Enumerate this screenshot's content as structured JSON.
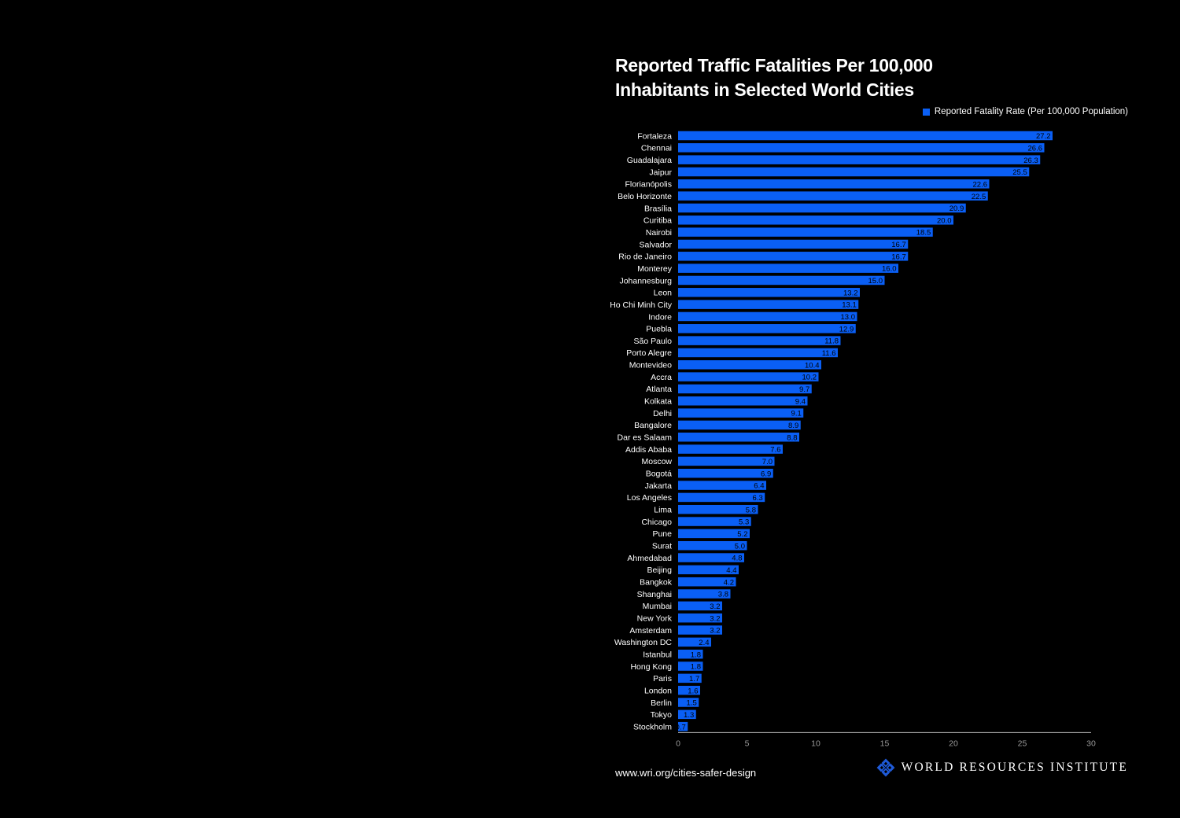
{
  "chart_data": {
    "type": "bar",
    "orientation": "horizontal",
    "title": [
      "Reported Traffic Fatalities Per 100,000",
      "Inhabitants in Selected World Cities"
    ],
    "xlim": [
      0,
      30
    ],
    "xticks": [
      0,
      5,
      10,
      15,
      20,
      25,
      30
    ],
    "grid": false,
    "legend_position": "top-right",
    "series": [
      {
        "name": "Reported Fatality Rate (Per 100,000 Population)",
        "color": "#0a5ff5",
        "labels": [
          "27.2",
          "26.6",
          "26.3",
          "25.5",
          "22.6",
          "22.5",
          "20.9",
          "20.0",
          "18.5",
          "16.7",
          "16.7",
          "16.0",
          "15.0",
          "13.2",
          "13.1",
          "13.0",
          "12.9",
          "11.8",
          "11.6",
          "10.4",
          "10.2",
          "9.7",
          "9.4",
          "9.1",
          "8.9",
          "8.8",
          "7.6",
          "7.0",
          "6.9",
          "6.4",
          "6.3",
          "5.8",
          "5.3",
          "5.2",
          "5.0",
          "4.8",
          "4.4",
          "4.2",
          "3.8",
          "3.2",
          "3.2",
          "3.2",
          "2.4",
          "1.8",
          "1.8",
          "1.7",
          "1.6",
          "1.5",
          "1.3",
          "0.7"
        ],
        "values": [
          27.2,
          26.6,
          26.3,
          25.5,
          22.6,
          22.5,
          20.9,
          20.0,
          18.5,
          16.7,
          16.7,
          16.0,
          15.0,
          13.2,
          13.1,
          13.0,
          12.9,
          11.8,
          11.6,
          10.4,
          10.2,
          9.7,
          9.4,
          9.1,
          8.9,
          8.8,
          7.6,
          7.0,
          6.9,
          6.4,
          6.3,
          5.8,
          5.3,
          5.2,
          5.0,
          4.8,
          4.4,
          4.2,
          3.8,
          3.2,
          3.2,
          3.2,
          2.4,
          1.8,
          1.8,
          1.7,
          1.6,
          1.5,
          1.3,
          0.7
        ]
      }
    ],
    "categories": [
      "Fortaleza",
      "Chennai",
      "Guadalajara",
      "Jaipur",
      "Florianópolis",
      "Belo Horizonte",
      "Brasília",
      "Curitiba",
      "Nairobi",
      "Salvador",
      "Rio de Janeiro",
      "Monterey",
      "Johannesburg",
      "Leon",
      "Ho Chi Minh City",
      "Indore",
      "Puebla",
      "São Paulo",
      "Porto Alegre",
      "Montevideo",
      "Accra",
      "Atlanta",
      "Kolkata",
      "Delhi",
      "Bangalore",
      "Dar es Salaam",
      "Addis Ababa",
      "Moscow",
      "Bogotá",
      "Jakarta",
      "Los Angeles",
      "Lima",
      "Chicago",
      "Pune",
      "Surat",
      "Ahmedabad",
      "Beijing",
      "Bangkok",
      "Shanghai",
      "Mumbai",
      "New York",
      "Amsterdam",
      "Washington DC",
      "Istanbul",
      "Hong Kong",
      "Paris",
      "London",
      "Berlin",
      "Tokyo",
      "Stockholm"
    ]
  },
  "footer": {
    "url": "www.wri.org/cities-safer-design",
    "brand_name": "WORLD RESOURCES INSTITUTE",
    "brand_icon": "wri-knot-logo-icon"
  },
  "colors": {
    "background": "#000000",
    "bar": "#0a5ff5",
    "text": "#ffffff",
    "tick_text": "#9a9a9a",
    "axis": "#bbbbbb"
  }
}
